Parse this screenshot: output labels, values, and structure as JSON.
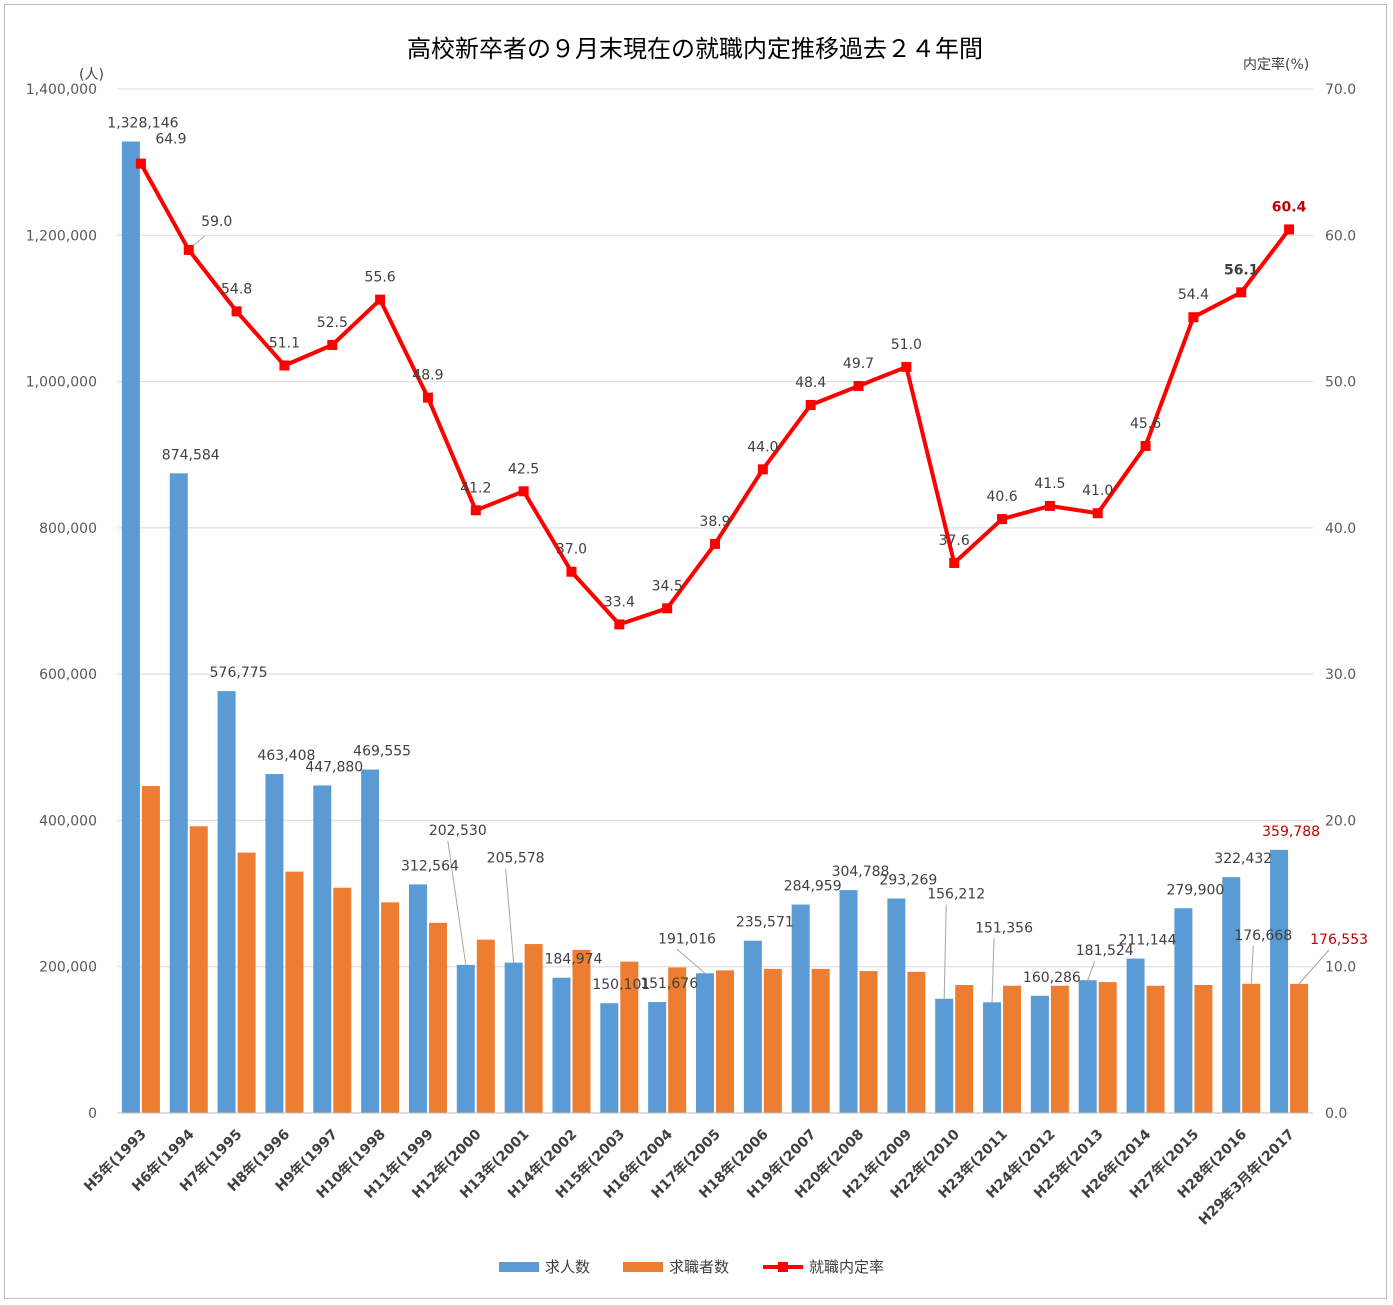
{
  "chart_data": {
    "type": "bar",
    "title": "高校新卒者の９月末現在の就職内定推移過去２４年間",
    "left_axis_unit": "(人)",
    "right_axis_unit": "内定率(%)",
    "ylim_left": [
      0,
      1400000
    ],
    "ylim_right": [
      0.0,
      70.0
    ],
    "left_ticks": [
      "0",
      "200,000",
      "400,000",
      "600,000",
      "800,000",
      "1,000,000",
      "1,200,000",
      "1,400,000"
    ],
    "right_ticks": [
      "0.0",
      "10.0",
      "20.0",
      "30.0",
      "40.0",
      "50.0",
      "60.0",
      "70.0"
    ],
    "grid": true,
    "legend_position": "bottom",
    "categories": [
      "H5年(1993",
      "H6年(1994",
      "H7年(1995",
      "H8年(1996",
      "H9年(1997",
      "H10年(1998",
      "H11年(1999",
      "H12年(2000",
      "H13年(2001",
      "H14年(2002",
      "H15年(2003",
      "H16年(2004",
      "H17年(2005",
      "H18年(2006",
      "H19年(2007",
      "H20年(2008",
      "H21年(2009",
      "H22年(2010",
      "H23年(2011",
      "H24年(2012",
      "H25年(2013",
      "H26年(2014",
      "H27年(2015",
      "H28年(2016",
      "H29年3月年(2017"
    ],
    "series": [
      {
        "name": "求人数",
        "type": "bar",
        "color": "#5b9bd5",
        "axis": "left",
        "values": [
          1328146,
          874584,
          576775,
          463408,
          447880,
          469555,
          312564,
          202530,
          205578,
          184974,
          150101,
          151676,
          191016,
          235571,
          284959,
          304788,
          293269,
          156212,
          151356,
          160286,
          181524,
          211144,
          279900,
          322432,
          359788
        ],
        "labels": [
          "1,328,146",
          "874,584",
          "576,775",
          "463,408",
          "447,880",
          "469,555",
          "312,564",
          "202,530",
          "205,578",
          "184,974",
          "150,101",
          "151,676",
          "191,016",
          "235,571",
          "284,959",
          "304,788",
          "293,269",
          "156,212",
          "151,356",
          "160,286",
          "181,524",
          "211,144",
          "279,900",
          "322,432",
          "359,788"
        ]
      },
      {
        "name": "求職者数",
        "type": "bar",
        "color": "#ed7d31",
        "axis": "left",
        "values": [
          447000,
          392000,
          356000,
          330000,
          308000,
          288000,
          260000,
          237000,
          231000,
          223000,
          207000,
          199000,
          195000,
          197000,
          197000,
          194000,
          193000,
          175000,
          174000,
          174000,
          179000,
          174000,
          175000,
          176668,
          176553
        ],
        "labels": [
          "",
          "",
          "",
          "",
          "",
          "",
          "",
          "",
          "",
          "",
          "",
          "",
          "",
          "",
          "",
          "",
          "",
          "",
          "",
          "",
          "",
          "",
          "",
          "176,668",
          "176,553"
        ]
      },
      {
        "name": "就職内定率",
        "type": "line",
        "color": "#ff0000",
        "axis": "right",
        "values": [
          64.9,
          59.0,
          54.8,
          51.1,
          52.5,
          55.6,
          48.9,
          41.2,
          42.5,
          37.0,
          33.4,
          34.5,
          38.9,
          44.0,
          48.4,
          49.7,
          51.0,
          37.6,
          40.6,
          41.5,
          41.0,
          45.6,
          54.4,
          56.1,
          60.4
        ],
        "labels": [
          "64.9",
          "59.0",
          "54.8",
          "51.1",
          "52.5",
          "55.6",
          "48.9",
          "41.2",
          "42.5",
          "37.0",
          "33.4",
          "34.5",
          "38.9",
          "44.0",
          "48.4",
          "49.7",
          "51.0",
          "37.6",
          "40.6",
          "41.5",
          "41.0",
          "45.6",
          "54.4",
          "56.1",
          "60.4"
        ]
      }
    ]
  }
}
